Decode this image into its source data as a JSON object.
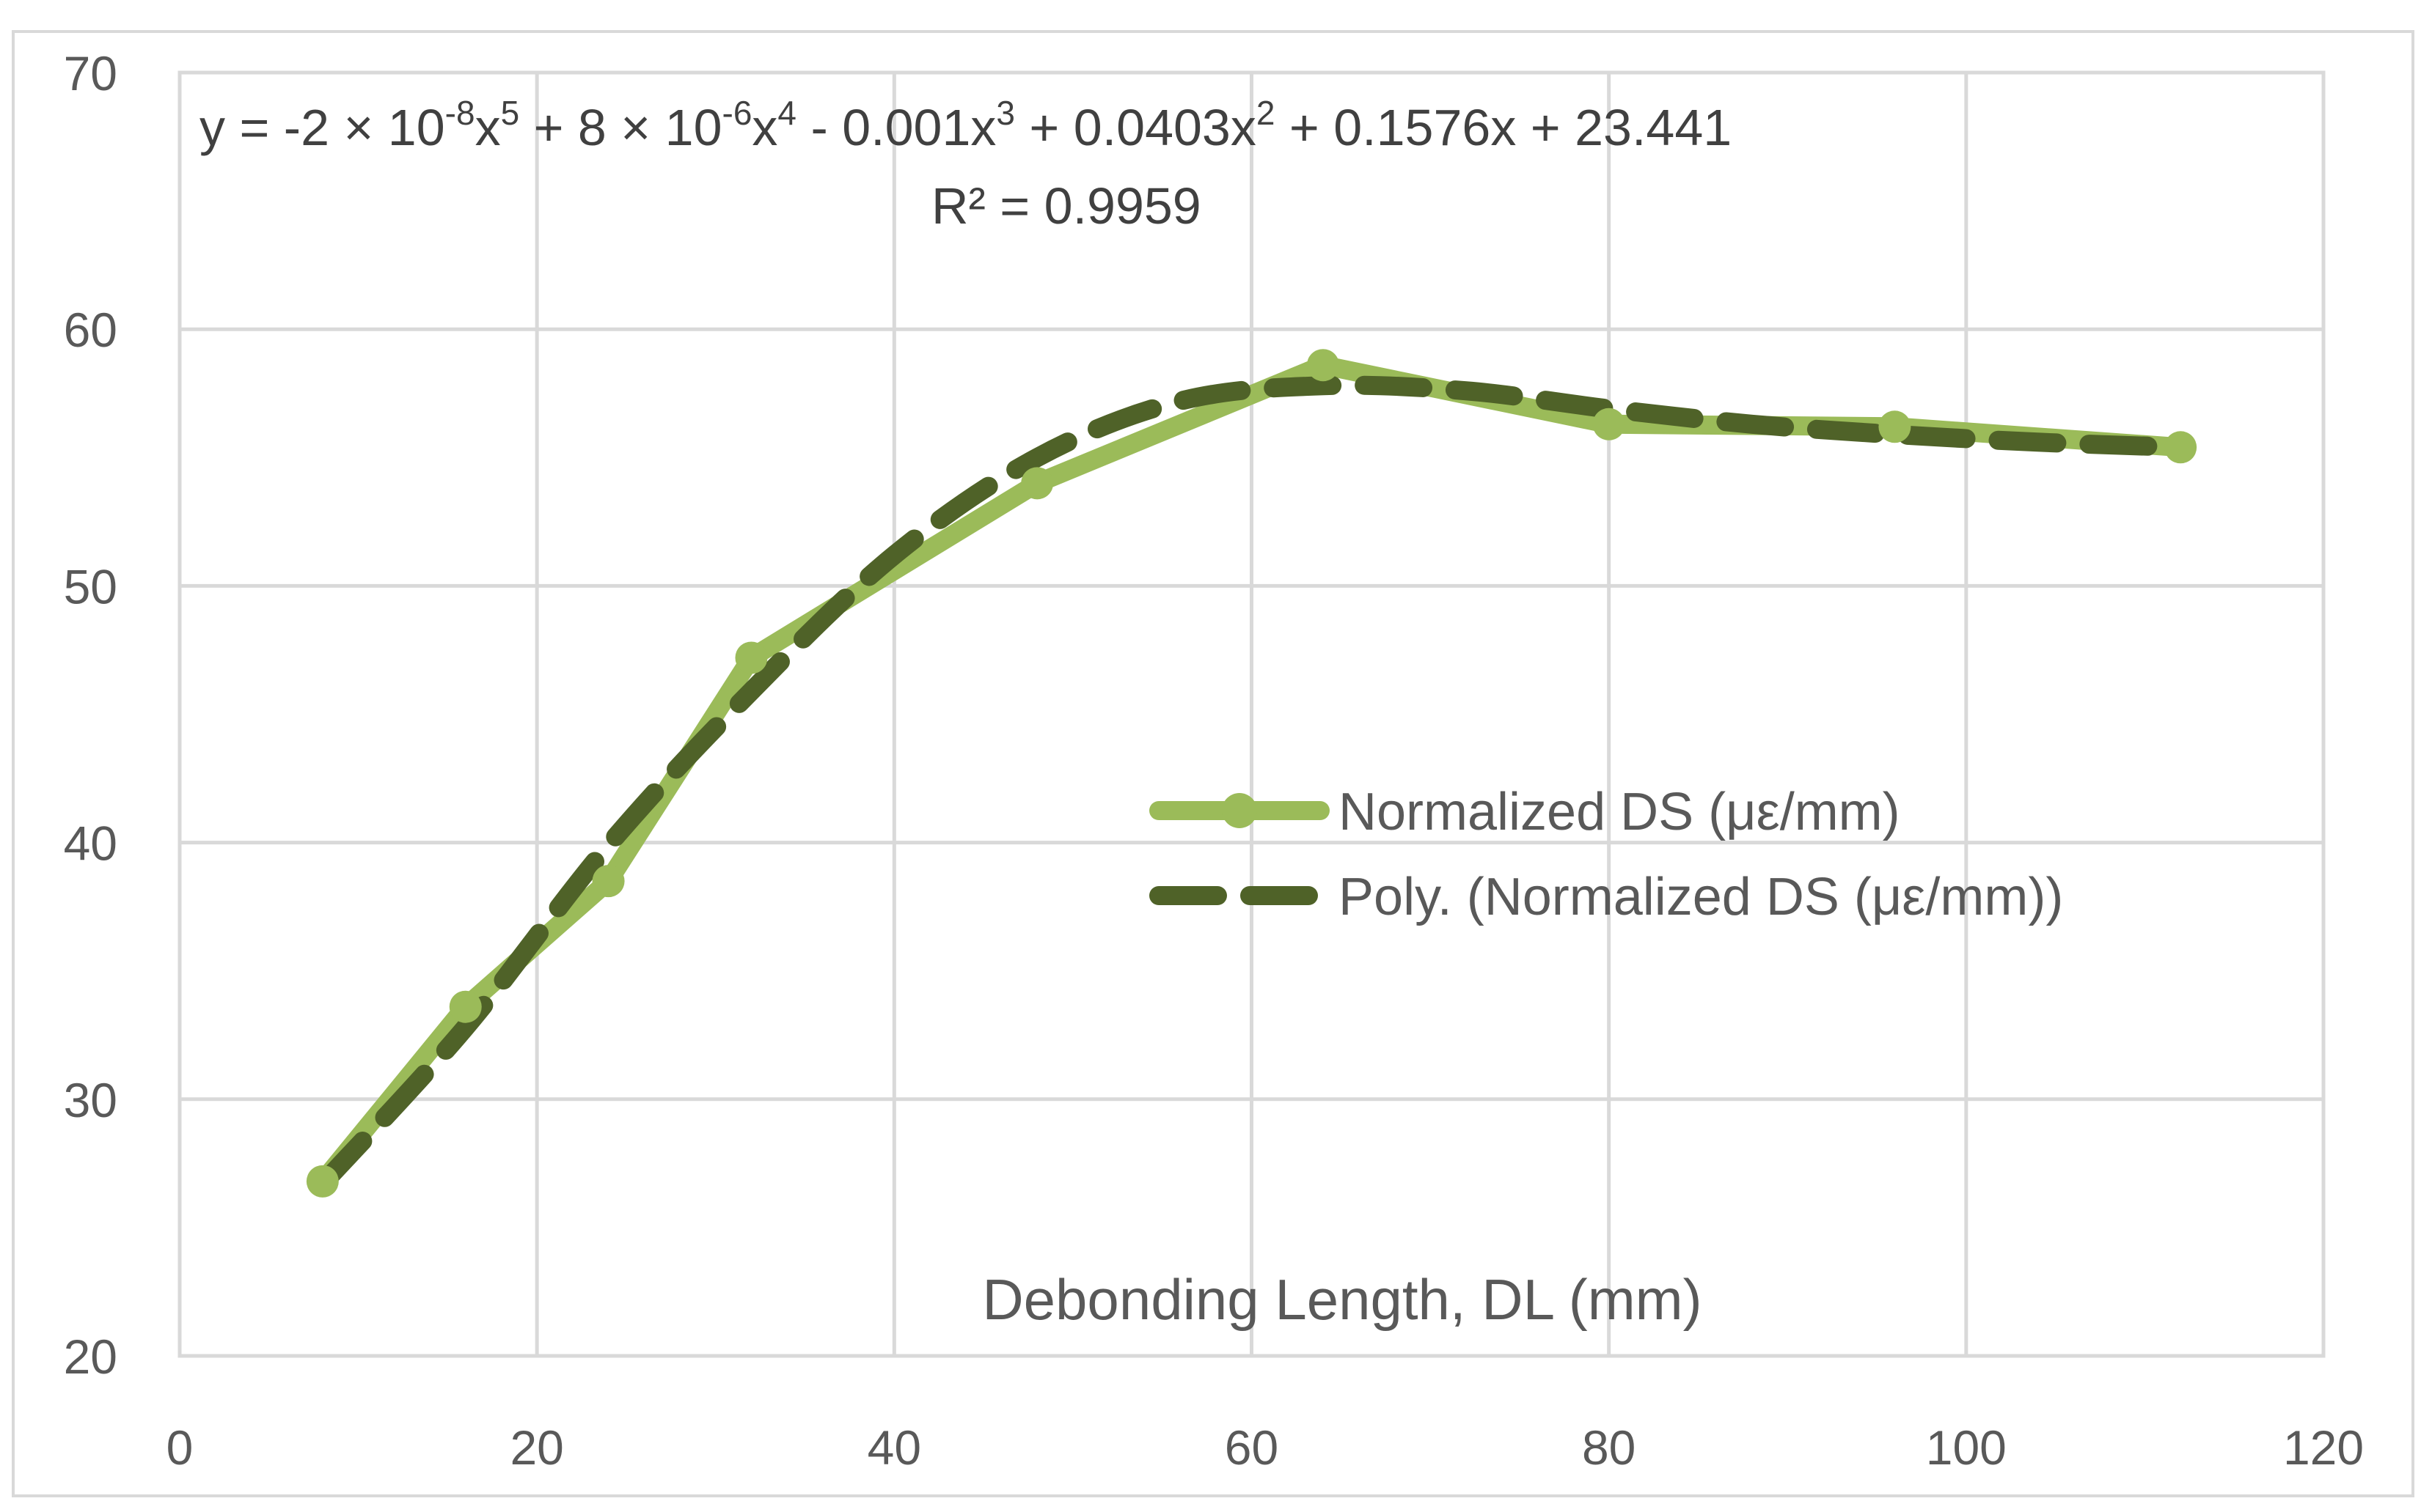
{
  "chart_data": {
    "type": "line",
    "title": "",
    "xlabel": "Debonding Length, DL (mm)",
    "ylabel": "",
    "xlim": [
      0,
      120
    ],
    "ylim": [
      20,
      70
    ],
    "x_ticks": [
      "0",
      "20",
      "40",
      "60",
      "80",
      "100",
      "120"
    ],
    "y_ticks": [
      "20",
      "30",
      "40",
      "50",
      "60",
      "70"
    ],
    "series": [
      {
        "name": "Normalized DS (με/mm)",
        "style": "solid-markers",
        "color": "#9bbb59",
        "x": [
          8,
          16,
          24,
          32,
          48,
          64,
          80,
          96,
          112
        ],
        "y": [
          26.8,
          33.6,
          38.5,
          47.2,
          54.0,
          58.6,
          56.3,
          56.2,
          55.4
        ]
      },
      {
        "name": "Poly. (Normalized DS (με/mm))",
        "style": "dashed",
        "color": "#4f6228",
        "equation": {
          "coefficients_desc": [
            -2e-08,
            8e-06,
            -0.001,
            0.0403,
            0.1576,
            23.441
          ],
          "fit_points_x": [
            8,
            16,
            24,
            32,
            40,
            48,
            56,
            64,
            72,
            80,
            88,
            96,
            104,
            112
          ],
          "fit_points_y": [
            26.7,
            32.8,
            39.9,
            45.9,
            51.2,
            55.0,
            57.2,
            57.8,
            57.6,
            56.9,
            56.3,
            55.9,
            55.6,
            55.4
          ]
        }
      }
    ],
    "trendline_equation_parts": {
      "y_eq": "y = -2 × 10",
      "e1": "-8",
      "x1": "x",
      "p1": "5",
      "plus1": " + 8 × 10",
      "e2": "-6",
      "x2": "x",
      "p2": "4",
      "minus1": " - 0.001x",
      "p3": "3",
      "plus2": " + 0.0403x",
      "p4": "2",
      "tail": " + 0.1576x + 23.441"
    },
    "r_squared_label": "R² = 0.9959",
    "legend_position": "center-right"
  }
}
